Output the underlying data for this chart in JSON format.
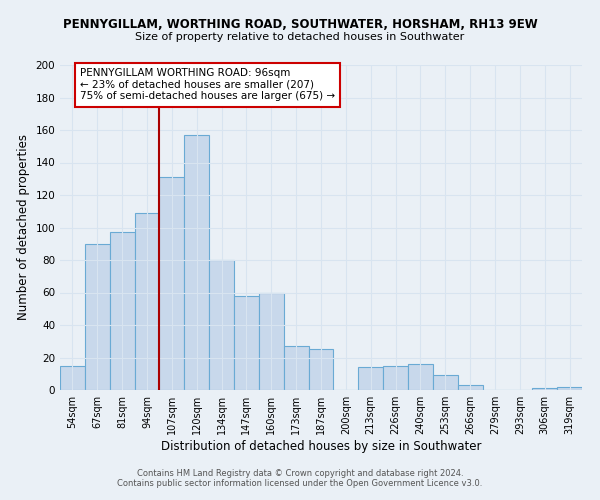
{
  "title_line1": "PENNYGILLAM, WORTHING ROAD, SOUTHWATER, HORSHAM, RH13 9EW",
  "title_line2": "Size of property relative to detached houses in Southwater",
  "xlabel": "Distribution of detached houses by size in Southwater",
  "ylabel": "Number of detached properties",
  "bar_color": "#c8d8eb",
  "bar_edge_color": "#6aaad4",
  "categories": [
    "54sqm",
    "67sqm",
    "81sqm",
    "94sqm",
    "107sqm",
    "120sqm",
    "134sqm",
    "147sqm",
    "160sqm",
    "173sqm",
    "187sqm",
    "200sqm",
    "213sqm",
    "226sqm",
    "240sqm",
    "253sqm",
    "266sqm",
    "279sqm",
    "293sqm",
    "306sqm",
    "319sqm"
  ],
  "values": [
    15,
    90,
    97,
    109,
    131,
    157,
    80,
    58,
    60,
    27,
    25,
    0,
    14,
    15,
    16,
    9,
    3,
    0,
    0,
    1,
    2
  ],
  "ylim": [
    0,
    200
  ],
  "yticks": [
    0,
    20,
    40,
    60,
    80,
    100,
    120,
    140,
    160,
    180,
    200
  ],
  "vline_x": 3.5,
  "vline_color": "#aa0000",
  "annotation_text": "PENNYGILLAM WORTHING ROAD: 96sqm\n← 23% of detached houses are smaller (207)\n75% of semi-detached houses are larger (675) →",
  "annotation_box_color": "#ffffff",
  "annotation_box_edge": "#cc0000",
  "footer_line1": "Contains HM Land Registry data © Crown copyright and database right 2024.",
  "footer_line2": "Contains public sector information licensed under the Open Government Licence v3.0.",
  "background_color": "#eaf0f6",
  "grid_color": "#d8e4f0",
  "title1_fontsize": 8.5,
  "title2_fontsize": 8.0
}
